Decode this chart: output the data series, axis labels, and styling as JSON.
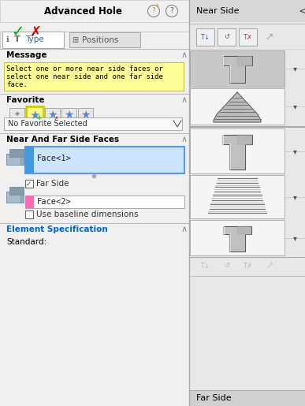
{
  "title": "Advanced Hole",
  "bg_color": "#f0f0f0",
  "fig_width": 3.87,
  "fig_height": 5.15,
  "dpi": 100,
  "sections": {
    "message_text": "Select one or more near side faces or\nselect one near side and one far side\nface.",
    "favorite_label": "Favorite",
    "near_far_label": "Near And Far Side Faces",
    "face1_text": "Face<1>",
    "face2_text": "Face<2>",
    "elem_spec_label": "Element Specification",
    "standard_label": "Standard:",
    "near_side_label": "Near Side",
    "far_side_label": "Far Side",
    "dropdown_text": "No Favorite Selected",
    "checkbox1_text": "Far Side",
    "checkbox2_text": "Use baseline dimensions",
    "type_tab": "Type",
    "positions_tab": "Positions"
  },
  "colors": {
    "message_bg": "#ffff99",
    "message_border": "#cccc00",
    "elem_spec_blue": "#0066cc",
    "green_check": "#00aa00",
    "red_x": "#cc0000",
    "face1_bg": "#cce4ff",
    "face1_border": "#5599ee",
    "face1_bar": "#4499dd",
    "face2_bar": "#ff69b4",
    "separator": "#bbbbbb",
    "icon_blue": "#5588cc",
    "yellow_border": "#cccc00",
    "near_side_header": "#d8d8d8",
    "right_panel": "#e8e8e8",
    "cell_selected": "#c8c8c8",
    "cell_normal": "#f5f5f5",
    "cell_border": "#999999",
    "btn_bg": "#f0f0f0",
    "btn_border": "#aaaaaa",
    "far_side_bar": "#d0d0d0"
  }
}
